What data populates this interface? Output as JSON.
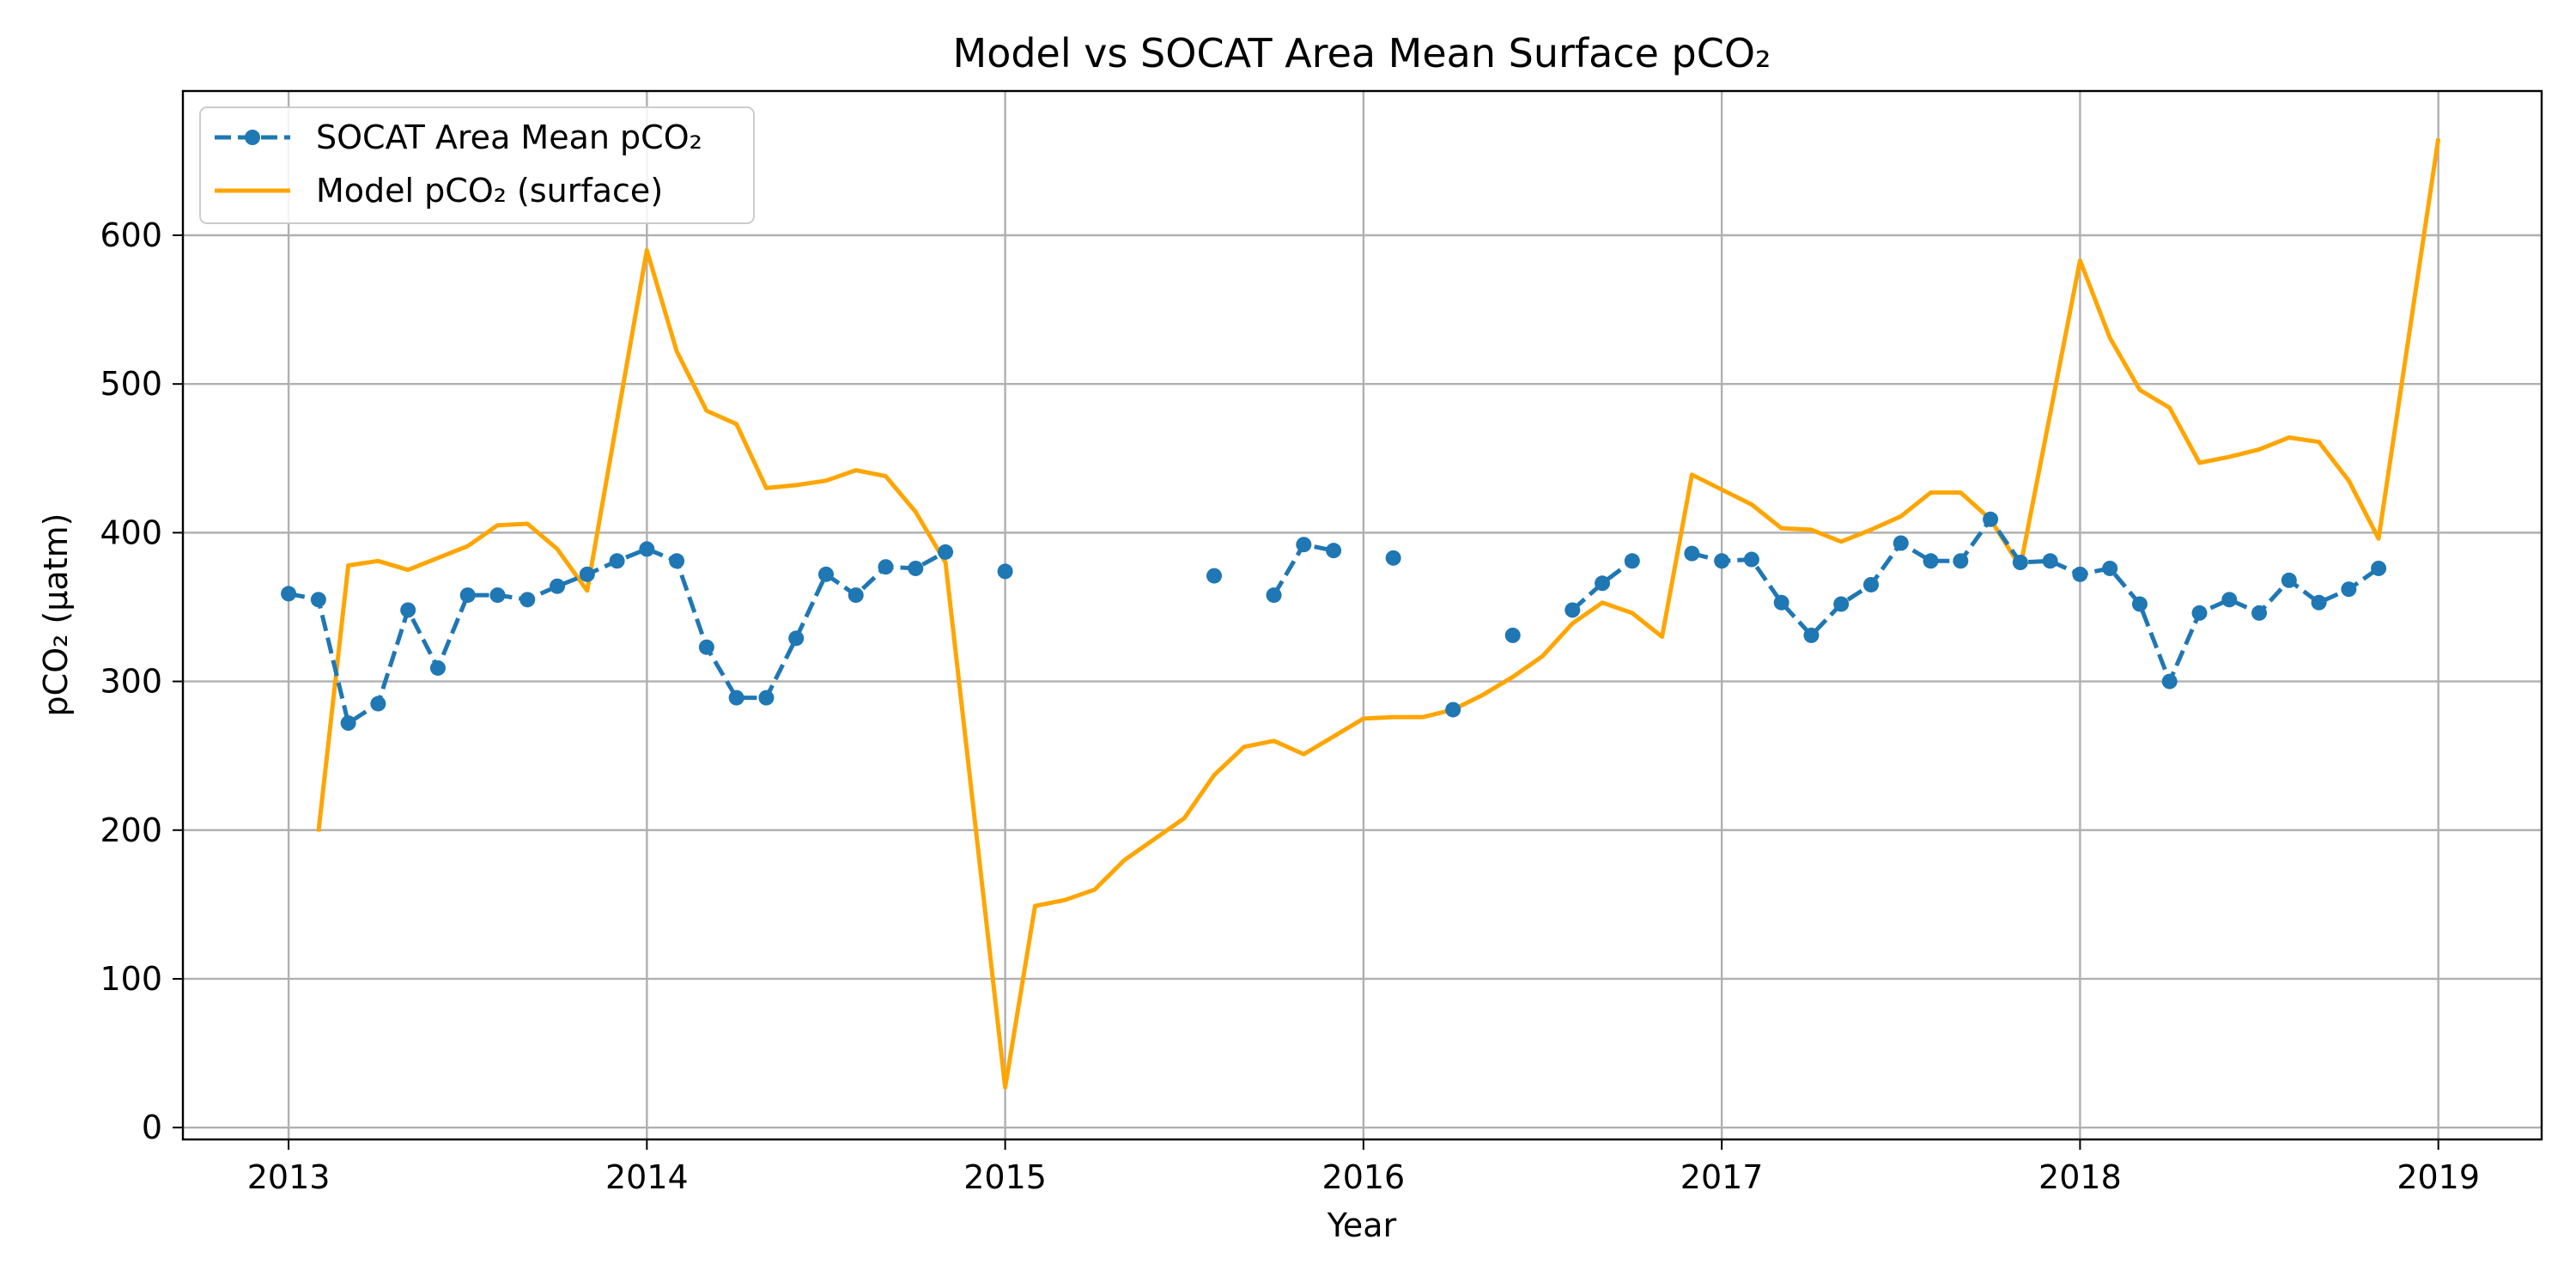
{
  "chart_data": {
    "type": "line",
    "title": "Model vs SOCAT Area Mean Surface pCO₂",
    "xlabel": "Year",
    "ylabel": "pCO₂ (µatm)",
    "xlim": [
      "2012-09-15",
      "2019-04-15"
    ],
    "ylim": [
      -8,
      697
    ],
    "x_ticks": [
      "2013",
      "2014",
      "2015",
      "2016",
      "2017",
      "2018",
      "2019"
    ],
    "y_ticks": [
      0,
      100,
      200,
      300,
      400,
      500,
      600
    ],
    "grid": true,
    "legend_position": "top-left",
    "series": [
      {
        "name": "SOCAT Area Mean pCO₂",
        "color": "#1f77b4",
        "style": "dashed-with-markers",
        "points": [
          [
            "2013-01",
            359
          ],
          [
            "2013-02",
            355
          ],
          [
            "2013-03",
            272
          ],
          [
            "2013-04",
            285
          ],
          [
            "2013-05",
            348
          ],
          [
            "2013-06",
            309
          ],
          [
            "2013-07",
            358
          ],
          [
            "2013-08",
            358
          ],
          [
            "2013-09",
            355
          ],
          [
            "2013-10",
            364
          ],
          [
            "2013-11",
            372
          ],
          [
            "2013-12",
            381
          ],
          [
            "2014-01",
            389
          ],
          [
            "2014-02",
            381
          ],
          [
            "2014-03",
            323
          ],
          [
            "2014-04",
            289
          ],
          [
            "2014-05",
            289
          ],
          [
            "2014-06",
            329
          ],
          [
            "2014-07",
            372
          ],
          [
            "2014-08",
            358
          ],
          [
            "2014-09",
            377
          ],
          [
            "2014-10",
            376
          ],
          [
            "2014-11",
            387
          ],
          [
            "2014-12",
            null
          ],
          [
            "2015-01",
            374
          ],
          [
            "2015-02",
            null
          ],
          [
            "2015-08",
            371
          ],
          [
            "2015-09",
            null
          ],
          [
            "2015-10",
            358
          ],
          [
            "2015-11",
            392
          ],
          [
            "2015-12",
            388
          ],
          [
            "2016-01",
            null
          ],
          [
            "2016-02",
            383
          ],
          [
            "2016-03",
            null
          ],
          [
            "2016-04",
            281
          ],
          [
            "2016-05",
            null
          ],
          [
            "2016-06",
            331
          ],
          [
            "2016-07",
            null
          ],
          [
            "2016-08",
            348
          ],
          [
            "2016-09",
            366
          ],
          [
            "2016-10",
            381
          ],
          [
            "2016-11",
            null
          ],
          [
            "2016-12",
            386
          ],
          [
            "2017-01",
            381
          ],
          [
            "2017-02",
            382
          ],
          [
            "2017-03",
            353
          ],
          [
            "2017-04",
            331
          ],
          [
            "2017-05",
            352
          ],
          [
            "2017-06",
            365
          ],
          [
            "2017-07",
            393
          ],
          [
            "2017-08",
            381
          ],
          [
            "2017-09",
            381
          ],
          [
            "2017-10",
            409
          ],
          [
            "2017-11",
            380
          ],
          [
            "2017-12",
            381
          ],
          [
            "2018-01",
            372
          ],
          [
            "2018-02",
            376
          ],
          [
            "2018-03",
            352
          ],
          [
            "2018-04",
            300
          ],
          [
            "2018-05",
            346
          ],
          [
            "2018-06",
            355
          ],
          [
            "2018-07",
            346
          ],
          [
            "2018-08",
            368
          ],
          [
            "2018-09",
            353
          ],
          [
            "2018-10",
            362
          ],
          [
            "2018-11",
            376
          ]
        ]
      },
      {
        "name": "Model pCO₂ (surface)",
        "color": "#ffa500",
        "style": "solid",
        "points": [
          [
            "2013-02",
            199
          ],
          [
            "2013-03",
            378
          ],
          [
            "2013-04",
            381
          ],
          [
            "2013-05",
            375
          ],
          [
            "2013-06",
            383
          ],
          [
            "2013-07",
            391
          ],
          [
            "2013-08",
            405
          ],
          [
            "2013-09",
            406
          ],
          [
            "2013-10",
            389
          ],
          [
            "2013-11",
            361
          ],
          [
            "2014-01",
            590
          ],
          [
            "2014-02",
            522
          ],
          [
            "2014-03",
            482
          ],
          [
            "2014-04",
            473
          ],
          [
            "2014-05",
            430
          ],
          [
            "2014-06",
            432
          ],
          [
            "2014-07",
            435
          ],
          [
            "2014-08",
            442
          ],
          [
            "2014-09",
            438
          ],
          [
            "2014-10",
            414
          ],
          [
            "2014-11",
            380
          ],
          [
            "2015-01",
            27
          ],
          [
            "2015-02",
            149
          ],
          [
            "2015-03",
            153
          ],
          [
            "2015-04",
            160
          ],
          [
            "2015-05",
            180
          ],
          [
            "2015-06",
            194
          ],
          [
            "2015-07",
            208
          ],
          [
            "2015-08",
            237
          ],
          [
            "2015-09",
            256
          ],
          [
            "2015-10",
            260
          ],
          [
            "2015-11",
            251
          ],
          [
            "2015-12",
            263
          ],
          [
            "2016-01",
            275
          ],
          [
            "2016-02",
            276
          ],
          [
            "2016-03",
            276
          ],
          [
            "2016-04",
            281
          ],
          [
            "2016-05",
            291
          ],
          [
            "2016-06",
            303
          ],
          [
            "2016-07",
            317
          ],
          [
            "2016-08",
            339
          ],
          [
            "2016-09",
            353
          ],
          [
            "2016-10",
            346
          ],
          [
            "2016-11",
            330
          ],
          [
            "2016-12",
            439
          ],
          [
            "2017-01",
            429
          ],
          [
            "2017-02",
            419
          ],
          [
            "2017-03",
            403
          ],
          [
            "2017-04",
            402
          ],
          [
            "2017-05",
            394
          ],
          [
            "2017-06",
            402
          ],
          [
            "2017-07",
            411
          ],
          [
            "2017-08",
            427
          ],
          [
            "2017-09",
            427
          ],
          [
            "2017-10",
            409
          ],
          [
            "2017-11",
            377
          ],
          [
            "2018-01",
            583
          ],
          [
            "2018-02",
            531
          ],
          [
            "2018-03",
            496
          ],
          [
            "2018-04",
            484
          ],
          [
            "2018-05",
            447
          ],
          [
            "2018-06",
            451
          ],
          [
            "2018-07",
            456
          ],
          [
            "2018-08",
            464
          ],
          [
            "2018-09",
            461
          ],
          [
            "2018-10",
            435
          ],
          [
            "2018-11",
            396
          ],
          [
            "2019-01",
            665
          ]
        ]
      }
    ]
  }
}
